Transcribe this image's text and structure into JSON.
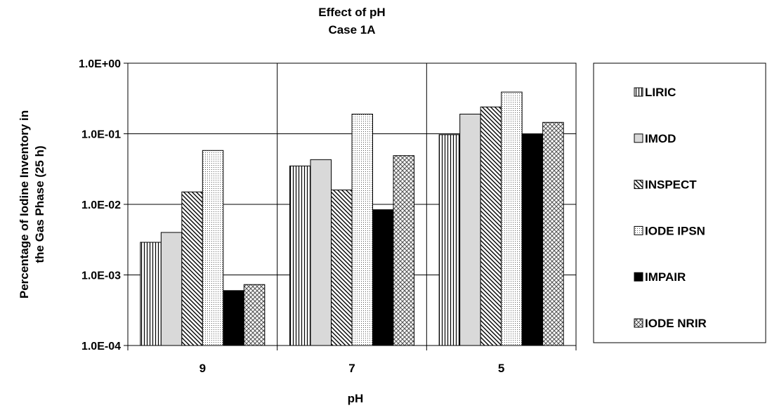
{
  "chart_data": {
    "type": "bar",
    "title": [
      "Effect of pH",
      "Case 1A"
    ],
    "xlabel": "pH",
    "ylabel": [
      "Percentage of Iodine Inventory in",
      "the Gas Phase (25 h)"
    ],
    "yscale": "log",
    "ylim": [
      0.0001,
      1
    ],
    "yticks": [
      "1.0E-04",
      "1.0E-03",
      "1.0E-02",
      "1.0E-01",
      "1.0E+00"
    ],
    "grid": true,
    "legend_position": "right",
    "categories": [
      "9",
      "7",
      "5"
    ],
    "series": [
      {
        "name": "LIRIC",
        "pattern": "vertical-lines",
        "values": [
          0.0029,
          0.035,
          0.097
        ]
      },
      {
        "name": "IMOD",
        "pattern": "light-gray",
        "values": [
          0.004,
          0.043,
          0.19
        ]
      },
      {
        "name": "INSPECT",
        "pattern": "diagonal-lines",
        "values": [
          0.015,
          0.016,
          0.24
        ]
      },
      {
        "name": "IODE IPSN",
        "pattern": "dotted",
        "values": [
          0.058,
          0.19,
          0.39
        ]
      },
      {
        "name": "IMPAIR",
        "pattern": "solid-black",
        "values": [
          0.0006,
          0.0084,
          0.1
        ]
      },
      {
        "name": "IODE NRIR",
        "pattern": "crosshatch",
        "values": [
          0.00073,
          0.049,
          0.145
        ]
      }
    ]
  }
}
